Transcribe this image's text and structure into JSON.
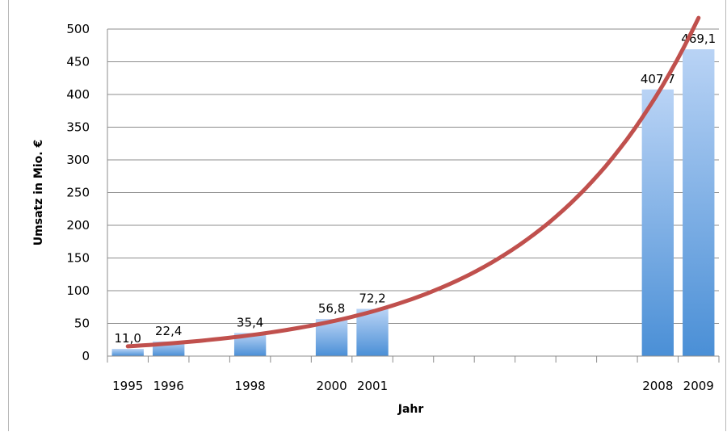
{
  "chart_data": {
    "type": "bar",
    "title": "",
    "xlabel": "Jahr",
    "ylabel": "Umsatz in Mio. €",
    "ylim": [
      0,
      500
    ],
    "yticks": [
      0,
      50,
      100,
      150,
      200,
      250,
      300,
      350,
      400,
      450,
      500
    ],
    "x_axis": {
      "range": [
        1995,
        2009
      ],
      "note": "time axis, one slot per year; only years with data are labeled"
    },
    "categories": [
      "1995",
      "1996",
      "1998",
      "2000",
      "2001",
      "2008",
      "2009"
    ],
    "values": [
      11.0,
      22.4,
      35.4,
      56.8,
      72.2,
      407.7,
      469.1
    ],
    "data_labels": [
      "11,0",
      "22,4",
      "35,4",
      "56,8",
      "72,2",
      "407,7",
      "469,1"
    ],
    "trendline": {
      "type": "exponential",
      "color": "#c0504d"
    },
    "grid": true,
    "legend": "none",
    "colors": {
      "bar_top": "#b9d3f5",
      "bar_bottom": "#4a8fd6",
      "trend": "#c0504d",
      "grid": "#8c8c8c",
      "axis": "#8c8c8c"
    }
  }
}
